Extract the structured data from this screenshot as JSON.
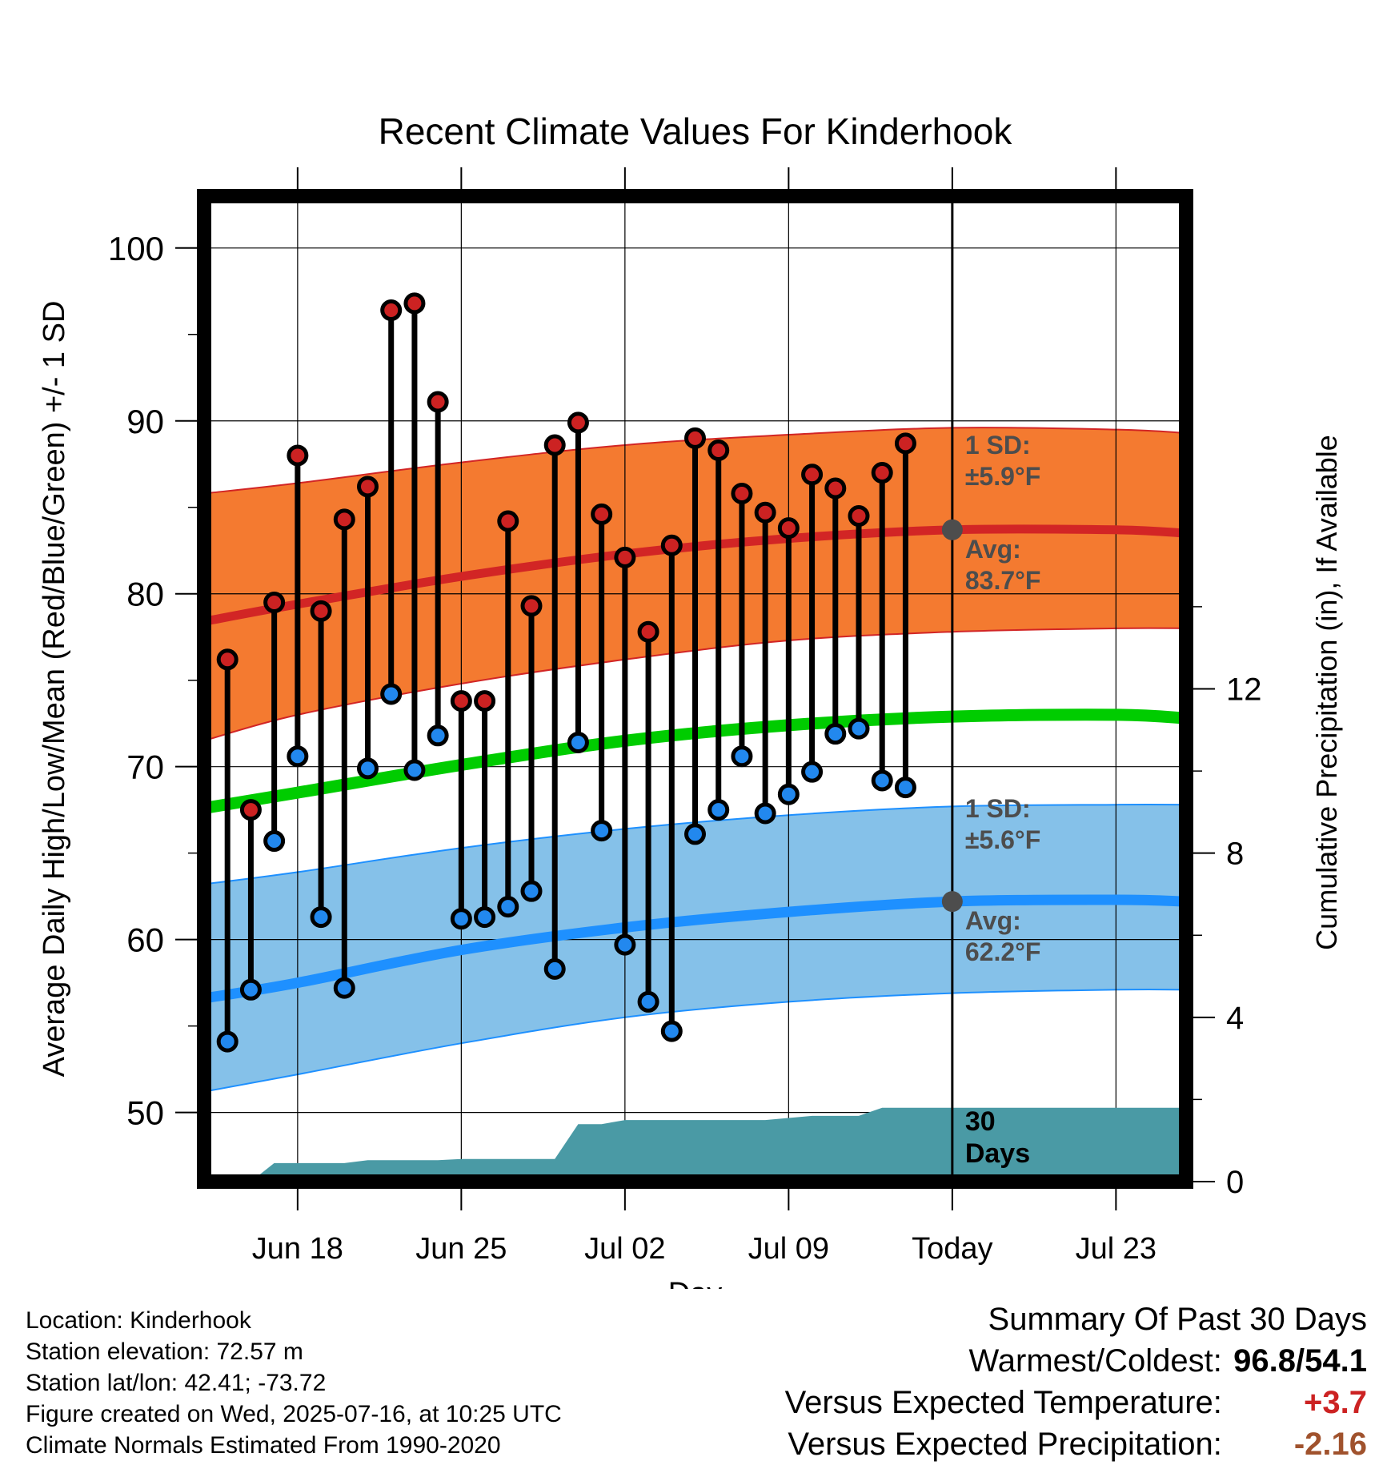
{
  "chart_data": {
    "type": "line",
    "title": "Recent Climate Values For Kinderhook",
    "xlabel": "Day",
    "ylabel": "Average Daily High/Low/Mean (Red/Blue/Green) +/- 1 SD",
    "y2label": "Cumulative Precipitation (in), If Available",
    "ylim": [
      46,
      103
    ],
    "y2lim": [
      0,
      24
    ],
    "yticks": [
      "50",
      "60",
      "70",
      "80",
      "90",
      "100"
    ],
    "y2ticks": [
      "0",
      "4",
      "8",
      "12"
    ],
    "xlim": [
      "2025-06-14",
      "2025-07-26"
    ],
    "xticks": [
      {
        "date": "2025-06-18",
        "label": "Jun 18"
      },
      {
        "date": "2025-06-25",
        "label": "Jun 25"
      },
      {
        "date": "2025-07-02",
        "label": "Jul 02"
      },
      {
        "date": "2025-07-09",
        "label": "Jul 09"
      },
      {
        "date": "2025-07-16",
        "label": "Today"
      },
      {
        "date": "2025-07-23",
        "label": "Jul 23"
      }
    ],
    "grid": true,
    "today": "2025-07-16",
    "colors": {
      "high_band": "#f47a30",
      "high_line": "#d22525",
      "low_band": "#85c1e9",
      "low_line": "#1e90ff",
      "mean_line": "#00cc00",
      "precip": "#4a9aa5",
      "high_dot": "#cc2222",
      "low_dot": "#2288ee",
      "marker": "#4d4d4d",
      "warm_value": "#cc2222",
      "precip_value": "#a0522d"
    },
    "normals": {
      "dates": [
        "2025-06-14",
        "2025-06-18",
        "2025-06-25",
        "2025-07-02",
        "2025-07-09",
        "2025-07-16",
        "2025-07-23",
        "2025-07-26"
      ],
      "high_avg": [
        78.4,
        79.4,
        81.0,
        82.3,
        83.2,
        83.7,
        83.7,
        83.5
      ],
      "high_plus_sd": [
        85.8,
        86.4,
        87.6,
        88.6,
        89.2,
        89.6,
        89.5,
        89.3
      ],
      "high_minus_sd": [
        71.5,
        73.0,
        74.8,
        76.2,
        77.3,
        77.8,
        78.0,
        78.0
      ],
      "low_avg": [
        56.6,
        57.5,
        59.4,
        60.7,
        61.6,
        62.2,
        62.3,
        62.2
      ],
      "low_plus_sd": [
        63.2,
        63.9,
        65.3,
        66.4,
        67.2,
        67.7,
        67.8,
        67.8
      ],
      "low_minus_sd": [
        51.2,
        52.2,
        54.0,
        55.5,
        56.4,
        56.9,
        57.1,
        57.1
      ],
      "mean": [
        67.6,
        68.5,
        70.1,
        71.5,
        72.4,
        72.9,
        73.0,
        72.8
      ]
    },
    "series": [
      {
        "name": "High",
        "values": [
          76.2,
          67.5,
          79.5,
          88.0,
          79.0,
          84.3,
          86.2,
          96.4,
          96.8,
          91.1,
          73.8,
          73.8,
          84.2,
          79.3,
          88.6,
          89.9,
          84.6,
          82.1,
          77.8,
          82.8,
          89.0,
          88.3,
          85.8,
          84.7,
          83.8,
          86.9,
          86.1,
          84.5,
          87.0,
          88.7
        ]
      },
      {
        "name": "Low",
        "values": [
          54.1,
          57.1,
          65.7,
          70.6,
          61.3,
          57.2,
          69.9,
          74.2,
          69.8,
          71.8,
          61.2,
          61.3,
          61.9,
          62.8,
          58.3,
          71.4,
          66.3,
          59.7,
          56.4,
          54.7,
          66.1,
          67.5,
          70.6,
          67.3,
          68.4,
          69.7,
          71.9,
          72.2,
          69.2,
          68.8
        ]
      }
    ],
    "dates": [
      "2025-06-15",
      "2025-06-16",
      "2025-06-17",
      "2025-06-18",
      "2025-06-19",
      "2025-06-20",
      "2025-06-21",
      "2025-06-22",
      "2025-06-23",
      "2025-06-24",
      "2025-06-25",
      "2025-06-26",
      "2025-06-27",
      "2025-06-28",
      "2025-06-29",
      "2025-06-30",
      "2025-07-01",
      "2025-07-02",
      "2025-07-03",
      "2025-07-04",
      "2025-07-05",
      "2025-07-06",
      "2025-07-07",
      "2025-07-08",
      "2025-07-09",
      "2025-07-10",
      "2025-07-11",
      "2025-07-12",
      "2025-07-13",
      "2025-07-14"
    ],
    "precip_cumulative": {
      "dates": [
        "2025-06-14",
        "2025-06-16",
        "2025-06-17",
        "2025-06-18",
        "2025-06-19",
        "2025-06-20",
        "2025-06-21",
        "2025-06-22",
        "2025-06-23",
        "2025-06-24",
        "2025-06-25",
        "2025-06-26",
        "2025-06-27",
        "2025-06-28",
        "2025-06-29",
        "2025-06-30",
        "2025-07-01",
        "2025-07-02",
        "2025-07-03",
        "2025-07-04",
        "2025-07-05",
        "2025-07-06",
        "2025-07-07",
        "2025-07-08",
        "2025-07-09",
        "2025-07-10",
        "2025-07-11",
        "2025-07-12",
        "2025-07-13",
        "2025-07-14",
        "2025-07-15",
        "2025-07-16",
        "2025-07-26"
      ],
      "values": [
        0,
        0,
        0.45,
        0.45,
        0.45,
        0.45,
        0.52,
        0.52,
        0.52,
        0.52,
        0.55,
        0.55,
        0.55,
        0.55,
        0.55,
        1.4,
        1.4,
        1.5,
        1.5,
        1.5,
        1.5,
        1.5,
        1.5,
        1.5,
        1.55,
        1.6,
        1.6,
        1.6,
        1.8,
        1.8,
        1.8,
        1.8,
        1.8
      ]
    },
    "annotations": {
      "high_sd_label": "1 SD:",
      "high_sd_value": "±5.9°F",
      "high_avg_label": "Avg:",
      "high_avg_value": "83.7°F",
      "low_sd_label": "1 SD:",
      "low_sd_value": "±5.6°F",
      "low_avg_label": "Avg:",
      "low_avg_value": "62.2°F",
      "precip_label_1": "30",
      "precip_label_2": "Days"
    }
  },
  "footer": {
    "location": "Location: Kinderhook",
    "elevation": "Station elevation: 72.57 m",
    "latlon": "Station lat/lon: 42.41; -73.72",
    "created": "Figure created on Wed, 2025-07-16, at 10:25 UTC",
    "normals": "Climate Normals Estimated From 1990-2020"
  },
  "summary": {
    "title": "Summary Of Past 30 Days",
    "warmest_label": "Warmest/Coldest:",
    "warmest_value": "96.8/54.1",
    "temp_label": "Versus Expected Temperature:",
    "temp_value": "+3.7",
    "precip_label": "Versus Expected Precipitation:",
    "precip_value": "-2.16"
  }
}
